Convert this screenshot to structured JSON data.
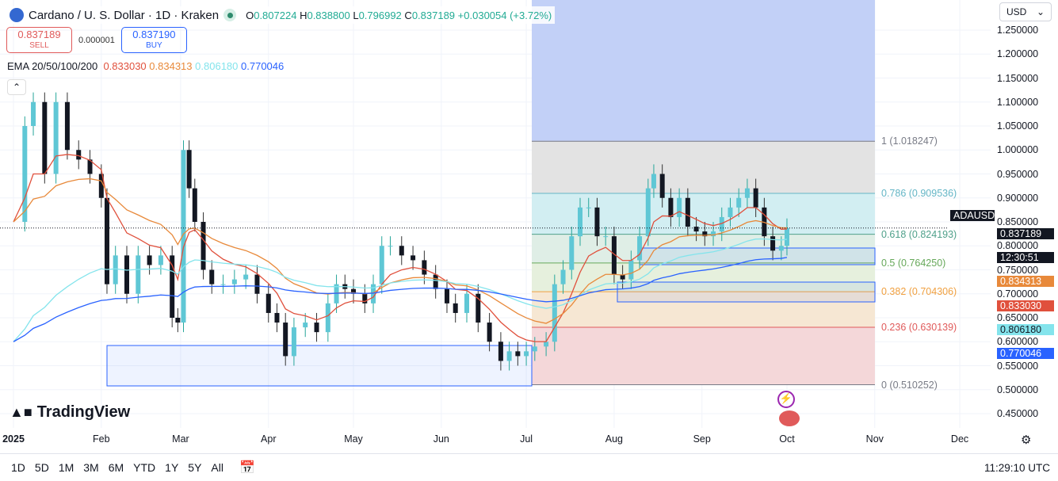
{
  "header": {
    "title": "Cardano / U. S. Dollar · 1D · Kraken",
    "o_label": "O",
    "open": "0.807224",
    "h_label": "H",
    "high": "0.838800",
    "l_label": "L",
    "low": "0.796992",
    "c_label": "C",
    "close": "0.837189",
    "change": "+0.030054 (+3.72%)"
  },
  "trade": {
    "sell_price": "0.837189",
    "sell_label": "SELL",
    "spread": "0.000001",
    "buy_price": "0.837190",
    "buy_label": "BUY"
  },
  "ema": {
    "label": "EMA 20/50/100/200",
    "v20": "0.833030",
    "v50": "0.834313",
    "v100": "0.806180",
    "v200": "0.770046",
    "colors": {
      "e20": "#e0503c",
      "e50": "#e8893a",
      "e100": "#84e4ec",
      "e200": "#2962ff"
    }
  },
  "currency": "USD",
  "price_labels": {
    "symbol": "ADAUSD",
    "last": "0.837189",
    "countdown": "12:30:51",
    "e50": "0.834313",
    "e20": "0.833030",
    "e100": "0.806180",
    "e200": "0.770046"
  },
  "fib": {
    "levels": [
      {
        "r": 1,
        "p": 1.018247,
        "label": "1 (1.018247)",
        "color": "#787b86"
      },
      {
        "r": 0.786,
        "p": 0.909536,
        "label": "0.786 (0.909536)",
        "color": "#64b5c6"
      },
      {
        "r": 0.618,
        "p": 0.824193,
        "label": "0.618 (0.824193)",
        "color": "#4fa08a"
      },
      {
        "r": 0.5,
        "p": 0.76425,
        "label": "0.5 (0.764250)",
        "color": "#66a85a"
      },
      {
        "r": 0.382,
        "p": 0.704306,
        "label": "0.382 (0.704306)",
        "color": "#f0a040"
      },
      {
        "r": 0.236,
        "p": 0.630139,
        "label": "0.236 (0.630139)",
        "color": "#e05a5a"
      },
      {
        "r": 0,
        "p": 0.510252,
        "label": "0 (0.510252)",
        "color": "#787b86"
      }
    ]
  },
  "chart_data": {
    "type": "candlestick",
    "x_unit": "day of 2025",
    "ylim": [
      0.42,
      1.28
    ],
    "yticks": [
      "1.250000",
      "1.200000",
      "1.150000",
      "1.100000",
      "1.050000",
      "1.000000",
      "0.950000",
      "0.900000",
      "0.850000",
      "0.800000",
      "0.750000",
      "0.700000",
      "0.650000",
      "0.600000",
      "0.550000",
      "0.500000",
      "0.450000"
    ],
    "xticks": [
      {
        "label": "2025",
        "day": 0
      },
      {
        "label": "Feb",
        "day": 31
      },
      {
        "label": "Mar",
        "day": 59
      },
      {
        "label": "Apr",
        "day": 90
      },
      {
        "label": "May",
        "day": 120
      },
      {
        "label": "Jun",
        "day": 151
      },
      {
        "label": "Jul",
        "day": 181
      },
      {
        "label": "Aug",
        "day": 212
      },
      {
        "label": "Sep",
        "day": 243
      },
      {
        "label": "Oct",
        "day": 273
      },
      {
        "label": "Nov",
        "day": 304
      },
      {
        "label": "Dec",
        "day": 334
      }
    ],
    "days": [
      0,
      4,
      7,
      11,
      15,
      19,
      23,
      27,
      31,
      33,
      36,
      40,
      44,
      48,
      52,
      56,
      58,
      60,
      62,
      64,
      67,
      70,
      74,
      78,
      82,
      86,
      90,
      93,
      96,
      99,
      103,
      107,
      111,
      114,
      117,
      120,
      124,
      127,
      130,
      133,
      137,
      141,
      145,
      149,
      153,
      156,
      160,
      164,
      168,
      172,
      175,
      178,
      181,
      184,
      188,
      191,
      194,
      197,
      200,
      203,
      206,
      209,
      212,
      215,
      218,
      221,
      224,
      226,
      229,
      232,
      235,
      238,
      241,
      244,
      247,
      250,
      253,
      256,
      259,
      262,
      265,
      268,
      271,
      273
    ],
    "closes": [
      0.85,
      1.05,
      1.1,
      0.95,
      1.1,
      1.0,
      0.98,
      0.95,
      0.9,
      0.72,
      0.78,
      0.7,
      0.78,
      0.76,
      0.78,
      0.65,
      0.64,
      1.0,
      0.92,
      0.85,
      0.75,
      0.72,
      0.72,
      0.73,
      0.74,
      0.7,
      0.66,
      0.64,
      0.57,
      0.63,
      0.64,
      0.62,
      0.68,
      0.72,
      0.71,
      0.7,
      0.68,
      0.72,
      0.8,
      0.8,
      0.78,
      0.77,
      0.74,
      0.71,
      0.68,
      0.66,
      0.7,
      0.64,
      0.6,
      0.56,
      0.58,
      0.57,
      0.58,
      0.59,
      0.6,
      0.72,
      0.75,
      0.82,
      0.88,
      0.88,
      0.82,
      0.82,
      0.74,
      0.73,
      0.77,
      0.82,
      0.92,
      0.95,
      0.9,
      0.86,
      0.9,
      0.84,
      0.83,
      0.82,
      0.83,
      0.86,
      0.88,
      0.9,
      0.92,
      0.88,
      0.82,
      0.79,
      0.8,
      0.837189
    ]
  },
  "bottom": {
    "timeframes": [
      "1D",
      "5D",
      "1M",
      "3M",
      "6M",
      "YTD",
      "1Y",
      "5Y",
      "All"
    ],
    "time": "11:29:10 UTC"
  },
  "brand": "TradingView"
}
